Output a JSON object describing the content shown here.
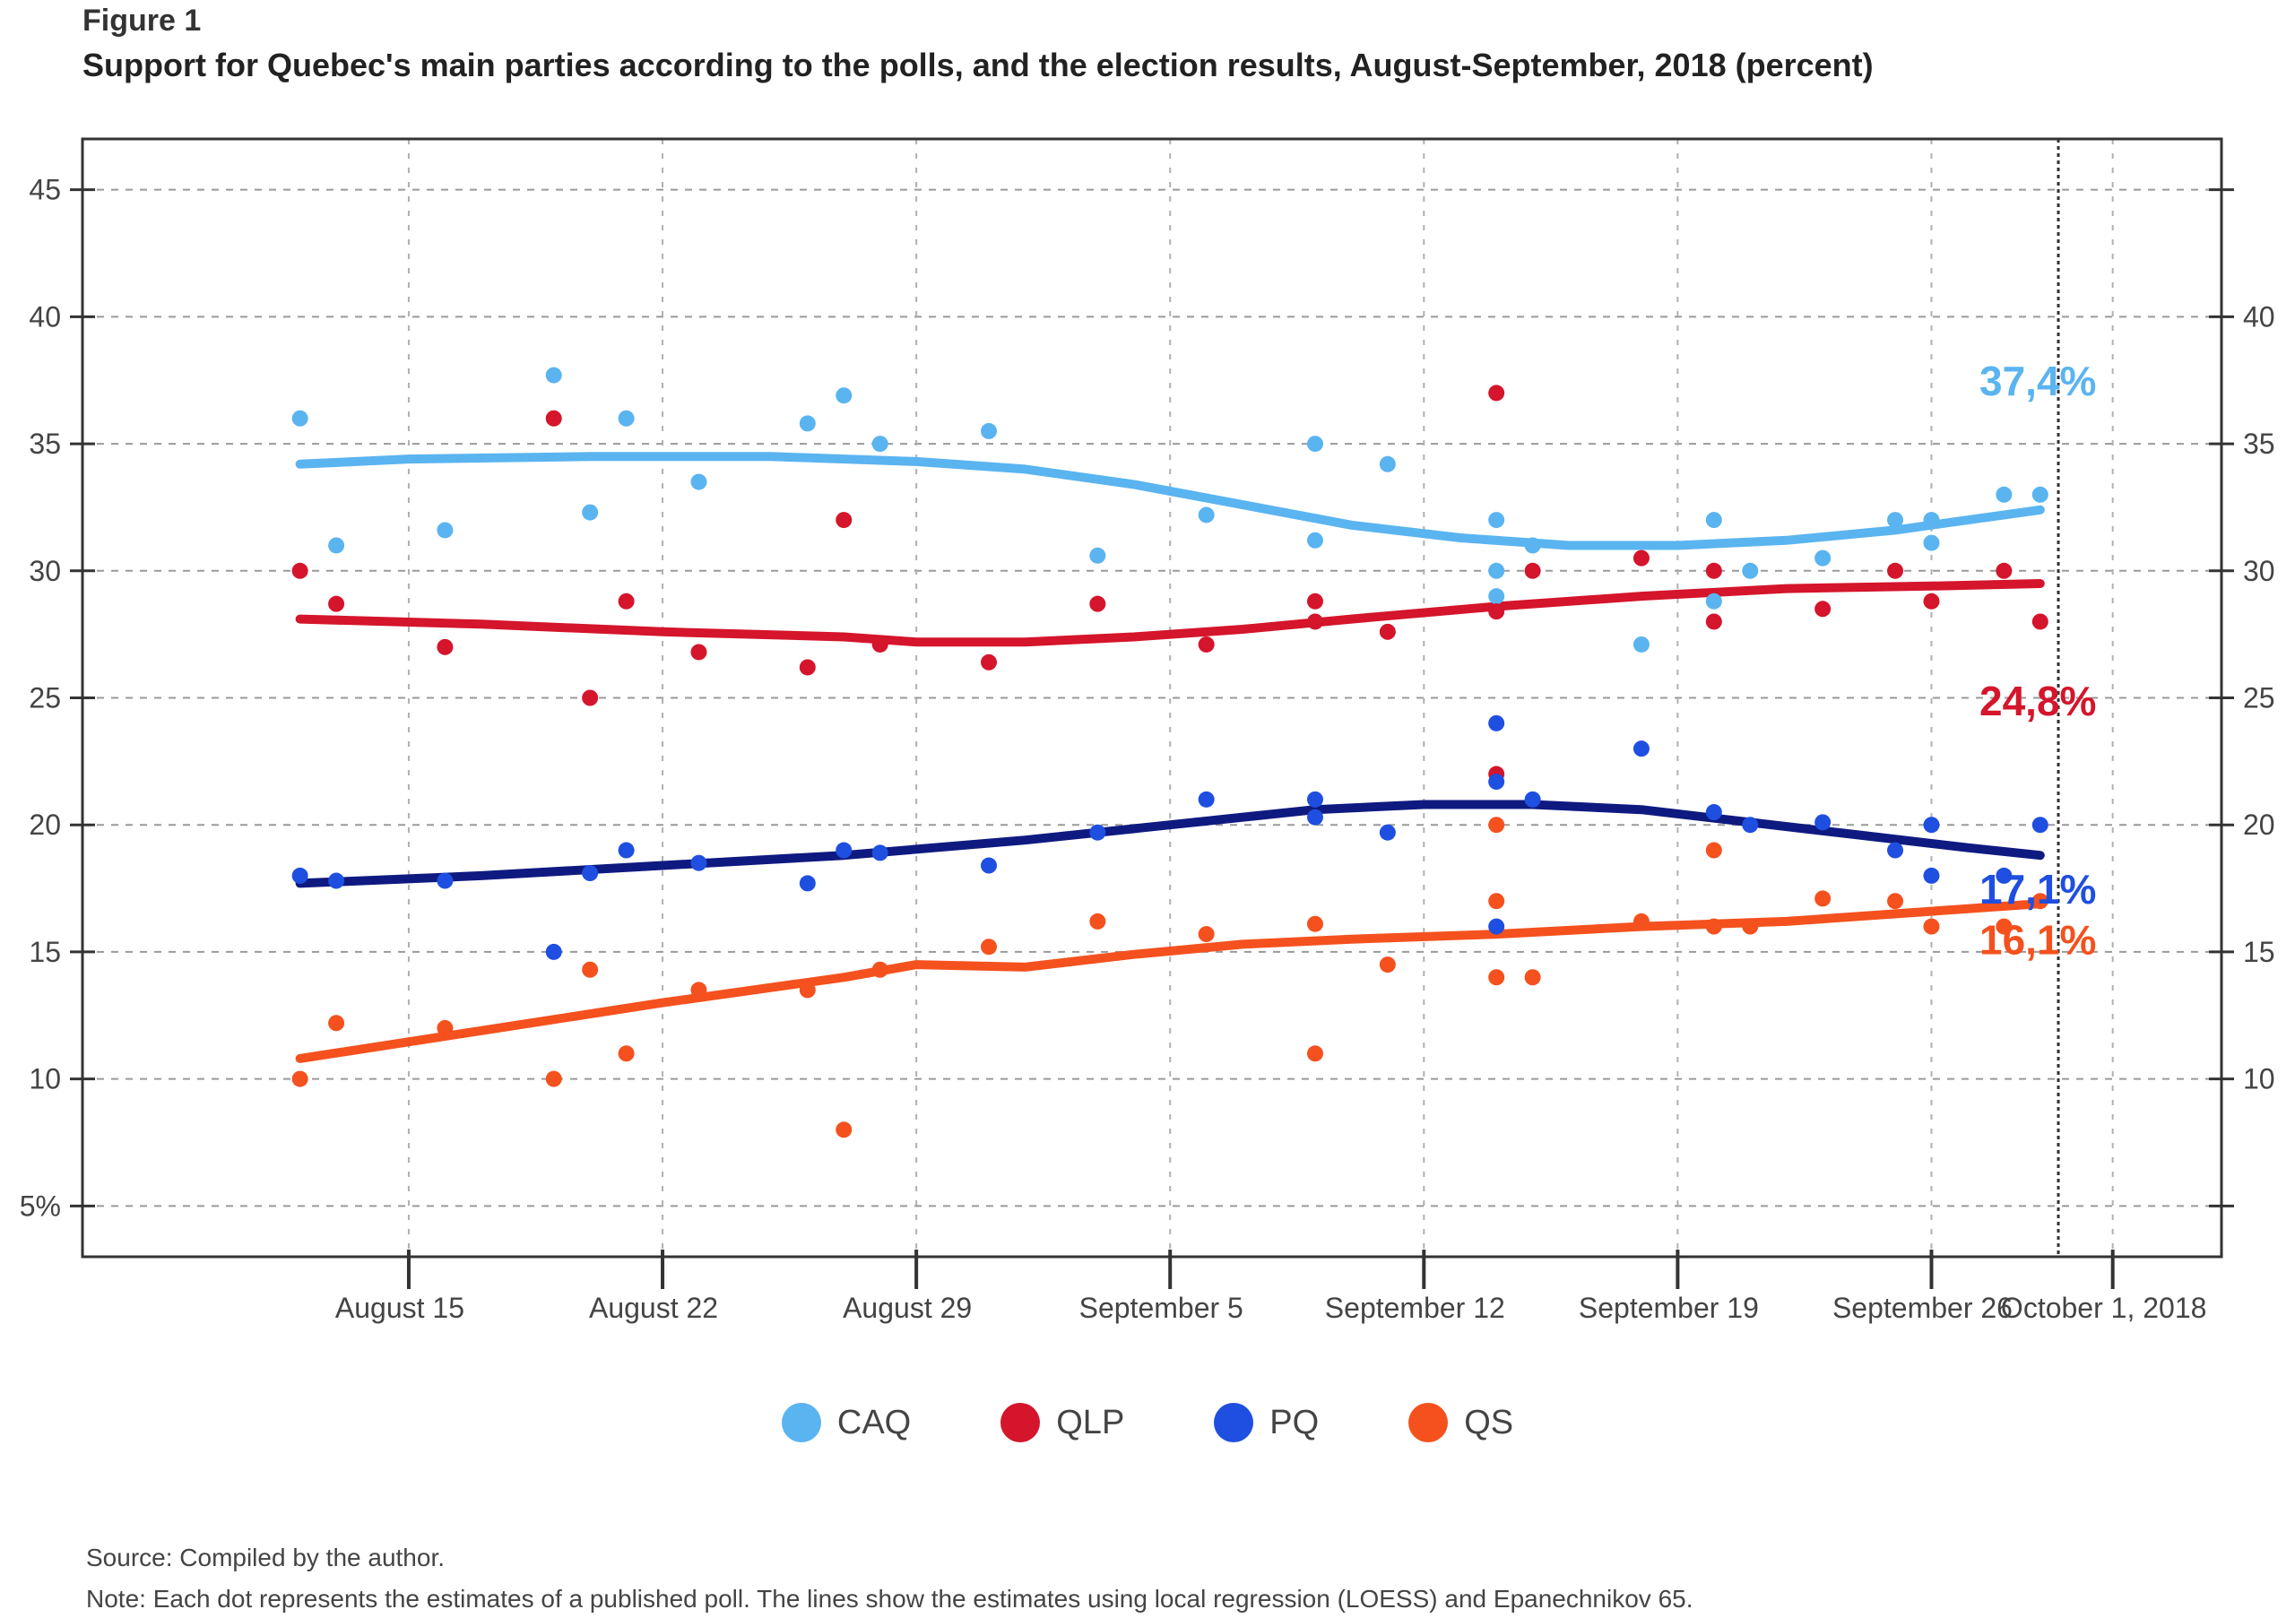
{
  "figure_label": "Figure 1",
  "title": "Support for Quebec's main parties according to the polls, and the election results, August-September, 2018 (percent)",
  "source": "Source: Compiled by the author.",
  "note": "Note: Each dot represents the estimates of a published poll. The lines show the estimates using local regression (LOESS) and Epanechnikov 65.",
  "chart_data": {
    "type": "scatter",
    "title": "Support for Quebec's main parties according to the polls, and the election results, August-September, 2018 (percent)",
    "xlabel": "",
    "ylabel": "",
    "xlim": [
      "2018-08-06",
      "2018-10-04"
    ],
    "ylim": [
      3,
      47
    ],
    "election_date": "2018-10-01",
    "grid": true,
    "legend_position": "bottom",
    "x_ticks": [
      {
        "date": "2018-08-15",
        "label": "August 15"
      },
      {
        "date": "2018-08-22",
        "label": "August 22"
      },
      {
        "date": "2018-08-29",
        "label": "August 29"
      },
      {
        "date": "2018-09-05",
        "label": "September 5"
      },
      {
        "date": "2018-09-12",
        "label": "September 12"
      },
      {
        "date": "2018-09-19",
        "label": "September 19"
      },
      {
        "date": "2018-09-26",
        "label": "September 26"
      },
      {
        "date": "2018-10-01",
        "label": "October 1, 2018"
      }
    ],
    "y_ticks": [
      {
        "value": 5,
        "label": "5%"
      },
      {
        "value": 10,
        "label": "10"
      },
      {
        "value": 15,
        "label": "15"
      },
      {
        "value": 20,
        "label": "20"
      },
      {
        "value": 25,
        "label": "25"
      },
      {
        "value": 30,
        "label": "30"
      },
      {
        "value": 35,
        "label": "35"
      },
      {
        "value": 40,
        "label": "40"
      },
      {
        "value": 45,
        "label": "45"
      }
    ],
    "series": [
      {
        "name": "CAQ",
        "color": "#5ab4f0",
        "result_label": "37,4%",
        "result": 37.4,
        "points": [
          [
            "2018-08-12",
            36
          ],
          [
            "2018-08-13",
            31
          ],
          [
            "2018-08-16",
            31.6
          ],
          [
            "2018-08-19",
            37.7
          ],
          [
            "2018-08-20",
            32.3
          ],
          [
            "2018-08-21",
            36
          ],
          [
            "2018-08-23",
            33.5
          ],
          [
            "2018-08-26",
            35.8
          ],
          [
            "2018-08-27",
            36.9
          ],
          [
            "2018-08-28",
            35
          ],
          [
            "2018-08-31",
            35.5
          ],
          [
            "2018-09-03",
            30.6
          ],
          [
            "2018-09-06",
            32.2
          ],
          [
            "2018-09-09",
            35
          ],
          [
            "2018-09-09",
            31.2
          ],
          [
            "2018-09-11",
            34.2
          ],
          [
            "2018-09-14",
            32
          ],
          [
            "2018-09-14",
            30
          ],
          [
            "2018-09-14",
            29
          ],
          [
            "2018-09-15",
            31
          ],
          [
            "2018-09-18",
            27.1
          ],
          [
            "2018-09-20",
            32
          ],
          [
            "2018-09-20",
            28.8
          ],
          [
            "2018-09-21",
            30
          ],
          [
            "2018-09-23",
            30.5
          ],
          [
            "2018-09-25",
            32
          ],
          [
            "2018-09-26",
            32
          ],
          [
            "2018-09-26",
            31.1
          ],
          [
            "2018-09-28",
            33
          ],
          [
            "2018-09-29",
            33
          ]
        ],
        "trend": [
          [
            "2018-08-12",
            34.2
          ],
          [
            "2018-08-15",
            34.4
          ],
          [
            "2018-08-20",
            34.5
          ],
          [
            "2018-08-25",
            34.5
          ],
          [
            "2018-08-29",
            34.3
          ],
          [
            "2018-09-01",
            34
          ],
          [
            "2018-09-04",
            33.4
          ],
          [
            "2018-09-07",
            32.6
          ],
          [
            "2018-09-10",
            31.8
          ],
          [
            "2018-09-13",
            31.3
          ],
          [
            "2018-09-16",
            31
          ],
          [
            "2018-09-19",
            31
          ],
          [
            "2018-09-22",
            31.2
          ],
          [
            "2018-09-25",
            31.6
          ],
          [
            "2018-09-29",
            32.4
          ]
        ]
      },
      {
        "name": "QLP",
        "color": "#d4152b",
        "result_label": "24,8%",
        "result": 24.8,
        "points": [
          [
            "2018-08-12",
            30
          ],
          [
            "2018-08-13",
            28.7
          ],
          [
            "2018-08-16",
            27
          ],
          [
            "2018-08-19",
            36
          ],
          [
            "2018-08-20",
            25
          ],
          [
            "2018-08-21",
            28.8
          ],
          [
            "2018-08-23",
            26.8
          ],
          [
            "2018-08-26",
            26.2
          ],
          [
            "2018-08-27",
            32
          ],
          [
            "2018-08-28",
            27.1
          ],
          [
            "2018-08-31",
            26.4
          ],
          [
            "2018-09-03",
            28.7
          ],
          [
            "2018-09-06",
            27.1
          ],
          [
            "2018-09-09",
            28.8
          ],
          [
            "2018-09-09",
            28
          ],
          [
            "2018-09-11",
            27.6
          ],
          [
            "2018-09-14",
            37
          ],
          [
            "2018-09-14",
            28.4
          ],
          [
            "2018-09-14",
            22
          ],
          [
            "2018-09-15",
            30
          ],
          [
            "2018-09-18",
            30.5
          ],
          [
            "2018-09-20",
            30
          ],
          [
            "2018-09-20",
            28
          ],
          [
            "2018-09-23",
            28.5
          ],
          [
            "2018-09-25",
            30
          ],
          [
            "2018-09-26",
            28.8
          ],
          [
            "2018-09-28",
            30
          ],
          [
            "2018-09-29",
            28
          ]
        ],
        "trend": [
          [
            "2018-08-12",
            28.1
          ],
          [
            "2018-08-17",
            27.9
          ],
          [
            "2018-08-22",
            27.6
          ],
          [
            "2018-08-27",
            27.4
          ],
          [
            "2018-08-29",
            27.2
          ],
          [
            "2018-09-01",
            27.2
          ],
          [
            "2018-09-04",
            27.4
          ],
          [
            "2018-09-07",
            27.7
          ],
          [
            "2018-09-10",
            28.1
          ],
          [
            "2018-09-14",
            28.6
          ],
          [
            "2018-09-18",
            29
          ],
          [
            "2018-09-22",
            29.3
          ],
          [
            "2018-09-26",
            29.4
          ],
          [
            "2018-09-29",
            29.5
          ]
        ]
      },
      {
        "name": "PQ",
        "color": "#1f4fe0",
        "trend_color": "#0f1a80",
        "result_label": "17,1%",
        "result": 17.1,
        "points": [
          [
            "2018-08-12",
            18
          ],
          [
            "2018-08-13",
            17.8
          ],
          [
            "2018-08-16",
            17.8
          ],
          [
            "2018-08-19",
            15
          ],
          [
            "2018-08-20",
            18.1
          ],
          [
            "2018-08-21",
            19
          ],
          [
            "2018-08-23",
            18.5
          ],
          [
            "2018-08-26",
            17.7
          ],
          [
            "2018-08-27",
            19
          ],
          [
            "2018-08-28",
            18.9
          ],
          [
            "2018-08-31",
            18.4
          ],
          [
            "2018-09-03",
            19.7
          ],
          [
            "2018-09-06",
            21
          ],
          [
            "2018-09-09",
            21
          ],
          [
            "2018-09-09",
            20.3
          ],
          [
            "2018-09-11",
            19.7
          ],
          [
            "2018-09-14",
            24
          ],
          [
            "2018-09-14",
            21.7
          ],
          [
            "2018-09-14",
            16
          ],
          [
            "2018-09-15",
            21
          ],
          [
            "2018-09-18",
            23
          ],
          [
            "2018-09-20",
            20.5
          ],
          [
            "2018-09-21",
            20
          ],
          [
            "2018-09-23",
            20.1
          ],
          [
            "2018-09-25",
            19
          ],
          [
            "2018-09-26",
            18
          ],
          [
            "2018-09-26",
            20
          ],
          [
            "2018-09-28",
            18
          ],
          [
            "2018-09-29",
            20
          ]
        ],
        "trend": [
          [
            "2018-08-12",
            17.7
          ],
          [
            "2018-08-17",
            18
          ],
          [
            "2018-08-22",
            18.4
          ],
          [
            "2018-08-27",
            18.8
          ],
          [
            "2018-09-01",
            19.4
          ],
          [
            "2018-09-05",
            20
          ],
          [
            "2018-09-09",
            20.6
          ],
          [
            "2018-09-12",
            20.8
          ],
          [
            "2018-09-15",
            20.8
          ],
          [
            "2018-09-18",
            20.6
          ],
          [
            "2018-09-21",
            20.1
          ],
          [
            "2018-09-24",
            19.6
          ],
          [
            "2018-09-27",
            19.1
          ],
          [
            "2018-09-29",
            18.8
          ]
        ]
      },
      {
        "name": "QS",
        "color": "#f4511e",
        "result_label": "16,1%",
        "result": 16.1,
        "points": [
          [
            "2018-08-12",
            10
          ],
          [
            "2018-08-13",
            12.2
          ],
          [
            "2018-08-16",
            12
          ],
          [
            "2018-08-19",
            10
          ],
          [
            "2018-08-20",
            14.3
          ],
          [
            "2018-08-21",
            11
          ],
          [
            "2018-08-23",
            13.5
          ],
          [
            "2018-08-26",
            13.5
          ],
          [
            "2018-08-27",
            8
          ],
          [
            "2018-08-28",
            14.3
          ],
          [
            "2018-08-31",
            15.2
          ],
          [
            "2018-09-03",
            16.2
          ],
          [
            "2018-09-06",
            15.7
          ],
          [
            "2018-09-09",
            16.1
          ],
          [
            "2018-09-09",
            11
          ],
          [
            "2018-09-11",
            14.5
          ],
          [
            "2018-09-14",
            20
          ],
          [
            "2018-09-14",
            17
          ],
          [
            "2018-09-14",
            14
          ],
          [
            "2018-09-15",
            14
          ],
          [
            "2018-09-18",
            16.2
          ],
          [
            "2018-09-20",
            19
          ],
          [
            "2018-09-20",
            16
          ],
          [
            "2018-09-21",
            16
          ],
          [
            "2018-09-23",
            17.1
          ],
          [
            "2018-09-25",
            17
          ],
          [
            "2018-09-26",
            16
          ],
          [
            "2018-09-28",
            16
          ],
          [
            "2018-09-29",
            17
          ]
        ],
        "trend": [
          [
            "2018-08-12",
            10.8
          ],
          [
            "2018-08-17",
            11.9
          ],
          [
            "2018-08-22",
            13
          ],
          [
            "2018-08-27",
            14
          ],
          [
            "2018-08-29",
            14.5
          ],
          [
            "2018-09-01",
            14.4
          ],
          [
            "2018-09-04",
            14.9
          ],
          [
            "2018-09-07",
            15.3
          ],
          [
            "2018-09-10",
            15.5
          ],
          [
            "2018-09-14",
            15.7
          ],
          [
            "2018-09-18",
            16
          ],
          [
            "2018-09-22",
            16.2
          ],
          [
            "2018-09-26",
            16.6
          ],
          [
            "2018-09-29",
            16.9
          ]
        ]
      }
    ]
  }
}
